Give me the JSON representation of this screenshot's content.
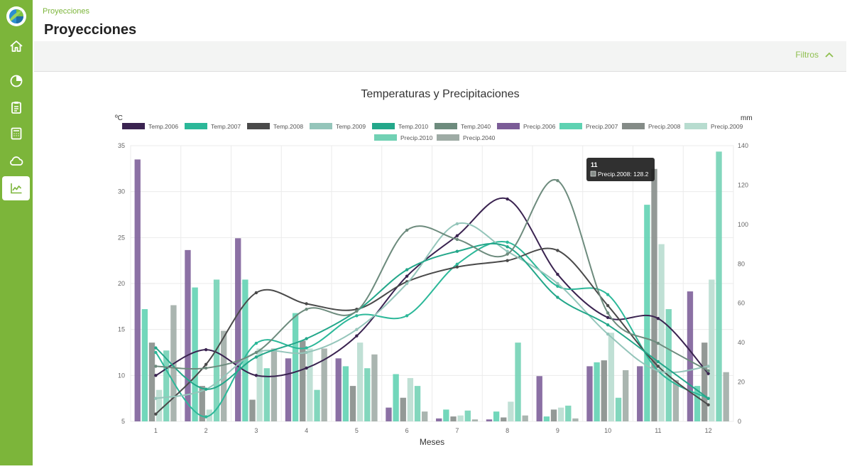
{
  "breadcrumb": "Proyecciones",
  "page_title": "Proyecciones",
  "filters_label": "Filtros",
  "sidebar": {
    "items": [
      {
        "icon": "home-icon",
        "active": false
      },
      {
        "icon": "pie-chart-icon",
        "active": false
      },
      {
        "icon": "clipboard-icon",
        "active": false
      },
      {
        "icon": "calculator-icon",
        "active": false
      },
      {
        "icon": "cloud-icon",
        "active": false
      },
      {
        "icon": "line-chart-icon",
        "active": true
      }
    ]
  },
  "colors": {
    "sidebar": "#7cb53a",
    "accent": "#8fbf4f"
  },
  "tooltip": {
    "title": "11",
    "label": "Precip.2008: 128.2"
  },
  "chart_data": {
    "type": "bar",
    "title": "Temperaturas y Precipitaciones",
    "xlabel": "Meses",
    "ylabel_left": "ºC",
    "ylabel_right": "mm",
    "categories": [
      "1",
      "2",
      "3",
      "4",
      "5",
      "6",
      "7",
      "8",
      "9",
      "10",
      "11",
      "12"
    ],
    "ylim_left": [
      5,
      35
    ],
    "yticks_left": [
      5,
      10,
      15,
      20,
      25,
      30,
      35
    ],
    "ylim_right": [
      0,
      140
    ],
    "yticks_right": [
      0,
      20,
      40,
      60,
      80,
      100,
      120,
      140
    ],
    "grid": true,
    "legend_position": "top",
    "bar_series": [
      {
        "name": "Precip.2006",
        "color": "#7b5c97",
        "values": [
          133,
          87,
          93,
          32,
          32,
          7,
          1.5,
          1,
          23,
          28,
          28,
          66
        ]
      },
      {
        "name": "Precip.2007",
        "color": "#5ed2b2",
        "values": [
          57,
          68,
          72,
          55,
          28,
          24,
          6,
          5,
          2.5,
          30,
          110,
          18
        ]
      },
      {
        "name": "Precip.2008",
        "color": "#848b87",
        "values": [
          40,
          18,
          11,
          41,
          18,
          12,
          2.5,
          2,
          6,
          31,
          128.2,
          40
        ]
      },
      {
        "name": "Precip.2009",
        "color": "#b7dccf",
        "values": [
          16,
          6,
          37,
          37,
          40,
          22,
          3,
          10,
          7,
          45,
          90,
          72
        ]
      },
      {
        "name": "Precip.2010",
        "color": "#71d1b4",
        "values": [
          36,
          72,
          27,
          16,
          27,
          18,
          5.5,
          40,
          8,
          12,
          57,
          137
        ]
      },
      {
        "name": "Precip.2040",
        "color": "#9eaba5",
        "values": [
          59,
          46,
          37,
          37,
          34,
          5,
          1,
          3,
          1.5,
          26,
          21,
          25
        ]
      }
    ],
    "line_series": [
      {
        "name": "Temp.2006",
        "color": "#3a2350",
        "values": [
          10,
          12.8,
          10,
          10.8,
          14.3,
          20.8,
          25.2,
          29.2,
          21,
          16.3,
          16.2,
          10.2
        ]
      },
      {
        "name": "Temp.2007",
        "color": "#2cb899",
        "values": [
          12.5,
          5.5,
          13.5,
          13,
          16.5,
          16.5,
          22.1,
          24.5,
          19.7,
          18.8,
          10.5,
          7.5
        ]
      },
      {
        "name": "Temp.2008",
        "color": "#4a4a4a",
        "values": [
          5.8,
          11.2,
          19,
          17.8,
          17.2,
          20.2,
          21.8,
          22.5,
          23.6,
          17.6,
          11,
          6.8
        ]
      },
      {
        "name": "Temp.2009",
        "color": "#94c5ba",
        "values": [
          7.5,
          8.5,
          12.5,
          12.5,
          15,
          20,
          26.5,
          23.5,
          20,
          14.5,
          10.5,
          11
        ]
      },
      {
        "name": "Temp.2010",
        "color": "#23a78a",
        "values": [
          13,
          8.5,
          12,
          14,
          17,
          21.5,
          23.5,
          24,
          18.5,
          15.5,
          11.5,
          7.5
        ]
      },
      {
        "name": "Temp.2040",
        "color": "#6d8b7d",
        "values": [
          11,
          10.8,
          12.5,
          17.2,
          17,
          25.8,
          24.8,
          23.2,
          31.2,
          16.8,
          13.5,
          10.5
        ]
      }
    ]
  }
}
